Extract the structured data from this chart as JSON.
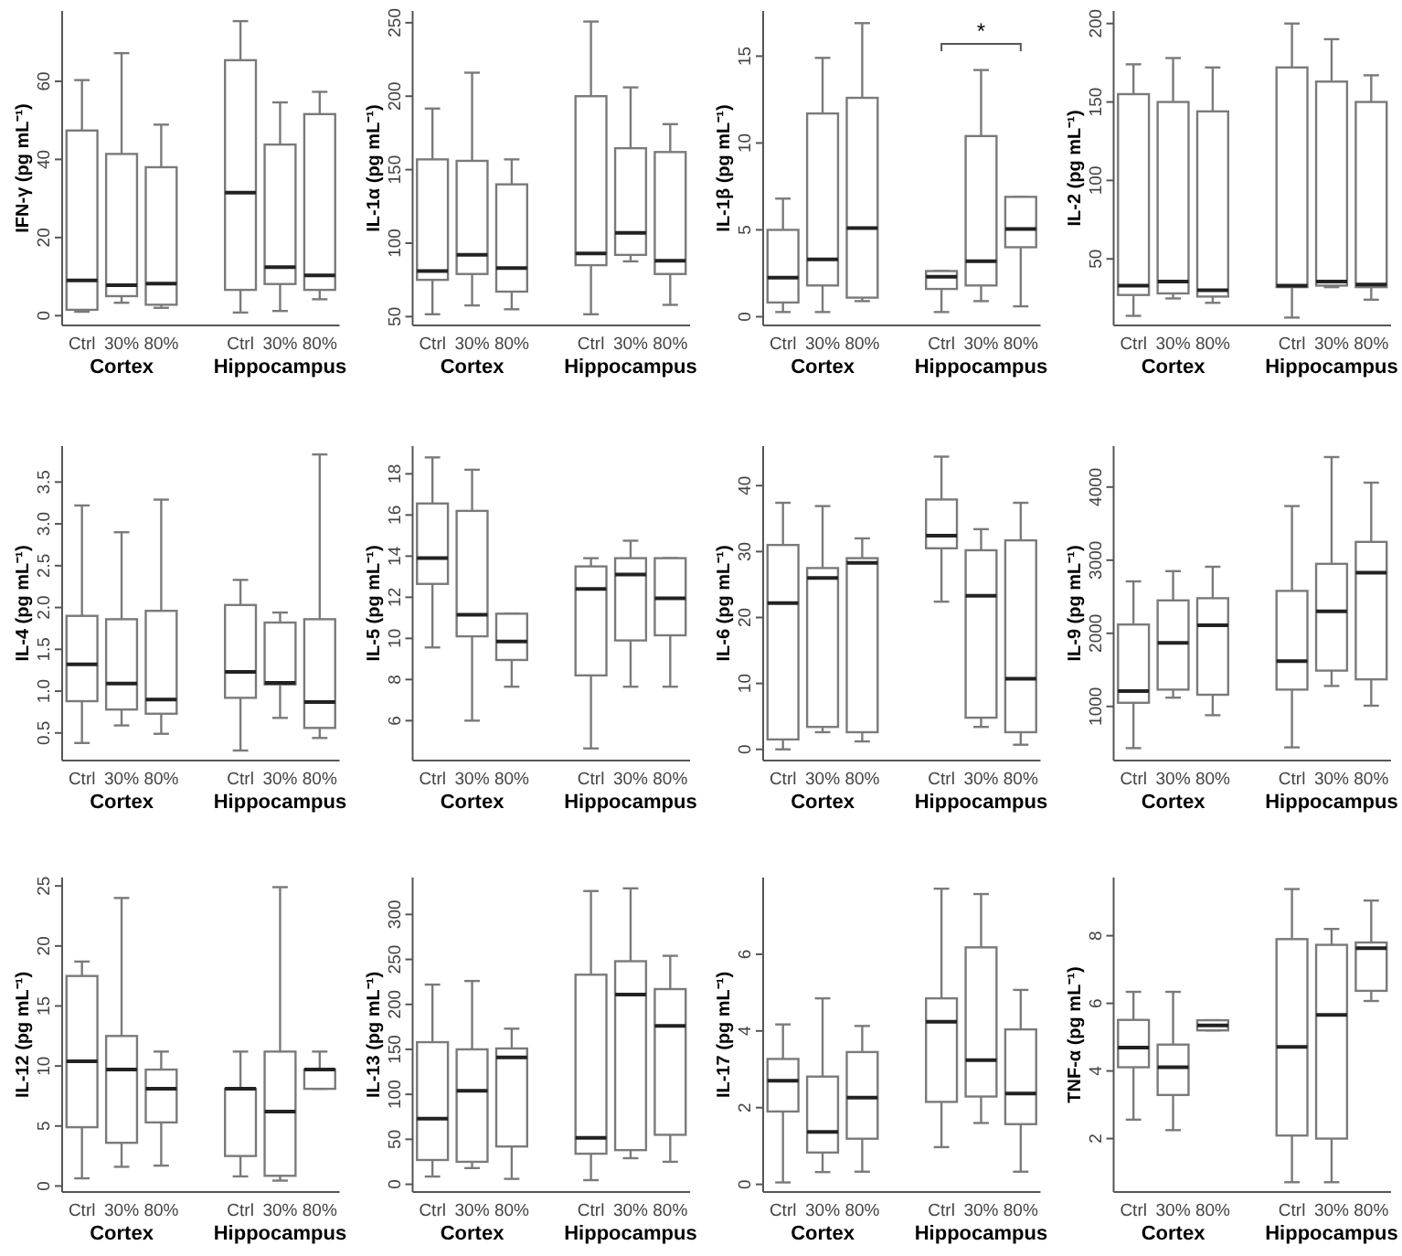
{
  "chart_data": [
    {
      "type": "box",
      "ylabel": "IFN-γ (pg mL⁻¹)",
      "categories": [
        "Ctrl",
        "30%",
        "80%",
        null,
        "Ctrl",
        "30%",
        "80%"
      ],
      "ylim": [
        -2.5,
        78
      ],
      "yticks": [
        0,
        20,
        40,
        60
      ],
      "annotations": [
        "Cortex",
        "Hippocampus"
      ],
      "boxes": [
        {
          "low": 1,
          "q1": 1.5,
          "median": 9,
          "q3": 47.4,
          "high": 60.3
        },
        {
          "low": 3.3,
          "q1": 5,
          "median": 7.8,
          "q3": 41.4,
          "high": 67.2
        },
        {
          "low": 2,
          "q1": 2.8,
          "median": 8.2,
          "q3": 38,
          "high": 48.9
        },
        null,
        {
          "low": 0.8,
          "q1": 6.6,
          "median": 31.5,
          "q3": 65.4,
          "high": 75.4
        },
        {
          "low": 1.2,
          "q1": 8.1,
          "median": 12.4,
          "q3": 43.8,
          "high": 54.6
        },
        {
          "low": 4.2,
          "q1": 6.6,
          "median": 10.3,
          "q3": 51.6,
          "high": 57.3
        }
      ]
    },
    {
      "type": "box",
      "ylabel": "IL-1α (pg mL⁻¹)",
      "categories": [
        "Ctrl",
        "30%",
        "80%",
        null,
        "Ctrl",
        "30%",
        "80%"
      ],
      "ylim": [
        44,
        258
      ],
      "yticks": [
        50,
        100,
        150,
        200,
        250
      ],
      "annotations": [
        "Cortex",
        "Hippocampus"
      ],
      "boxes": [
        {
          "low": 51.6,
          "q1": 75,
          "median": 81,
          "q3": 157,
          "high": 191.6
        },
        {
          "low": 57.6,
          "q1": 79,
          "median": 92,
          "q3": 156,
          "high": 216
        },
        {
          "low": 55,
          "q1": 67,
          "median": 83,
          "q3": 140,
          "high": 157
        },
        null,
        {
          "low": 51.6,
          "q1": 85,
          "median": 93,
          "q3": 200,
          "high": 250.8
        },
        {
          "low": 87.6,
          "q1": 92,
          "median": 107,
          "q3": 164.6,
          "high": 206
        },
        {
          "low": 58,
          "q1": 79,
          "median": 88,
          "q3": 162,
          "high": 181
        }
      ]
    },
    {
      "type": "box",
      "ylabel": "IL-1β (pg mL⁻¹)",
      "categories": [
        "Ctrl",
        "30%",
        "80%",
        null,
        "Ctrl",
        "30%",
        "80%"
      ],
      "ylim": [
        -0.5,
        17.6
      ],
      "yticks": [
        0,
        5,
        10,
        15
      ],
      "annotations": [
        "Cortex",
        "Hippocampus",
        "*"
      ],
      "boxes": [
        {
          "low": 0.27,
          "q1": 0.82,
          "median": 2.25,
          "q3": 5,
          "high": 6.8
        },
        {
          "low": 0.27,
          "q1": 1.8,
          "median": 3.3,
          "q3": 11.7,
          "high": 14.9
        },
        {
          "low": 0.9,
          "q1": 1.1,
          "median": 5.1,
          "q3": 12.6,
          "high": 16.9
        },
        null,
        {
          "low": 0.27,
          "q1": 1.6,
          "median": 2.3,
          "q3": 2.63,
          "high": 2.63
        },
        {
          "low": 0.9,
          "q1": 1.8,
          "median": 3.2,
          "q3": 10.4,
          "high": 14.2
        },
        {
          "low": 0.6,
          "q1": 4,
          "median": 5.05,
          "q3": 6.9,
          "high": 6.9
        }
      ]
    },
    {
      "type": "box",
      "ylabel": "IL-2 (pg mL⁻¹)",
      "categories": [
        "Ctrl",
        "30%",
        "80%",
        null,
        "Ctrl",
        "30%",
        "80%"
      ],
      "ylim": [
        7.6,
        208
      ],
      "yticks": [
        50,
        100,
        150,
        200
      ],
      "annotations": [
        "Cortex",
        "Hippocampus"
      ],
      "boxes": [
        {
          "low": 13.7,
          "q1": 27,
          "median": 33,
          "q3": 155,
          "high": 174
        },
        {
          "low": 24.8,
          "q1": 28,
          "median": 35.6,
          "q3": 150,
          "high": 178
        },
        {
          "low": 22,
          "q1": 26,
          "median": 30,
          "q3": 144,
          "high": 172
        },
        null,
        {
          "low": 12.6,
          "q1": 32,
          "median": 33,
          "q3": 172,
          "high": 200
        },
        {
          "low": 32,
          "q1": 33,
          "median": 35.6,
          "q3": 163,
          "high": 190
        },
        {
          "low": 24,
          "q1": 32,
          "median": 33.6,
          "q3": 150,
          "high": 167
        }
      ]
    },
    {
      "type": "box",
      "ylabel": "IL-4 (pg mL⁻¹)",
      "categories": [
        "Ctrl",
        "30%",
        "80%",
        null,
        "Ctrl",
        "30%",
        "80%"
      ],
      "ylim": [
        0.17,
        3.93
      ],
      "yticks": [
        {
          "value": 0.5,
          "label": "0.5"
        },
        {
          "value": 1,
          "label": "1.0"
        },
        {
          "value": 1.5,
          "label": "1.5"
        },
        {
          "value": 2,
          "label": "2.0"
        },
        {
          "value": 2.5,
          "label": "2.5"
        },
        {
          "value": 3,
          "label": "3.0"
        },
        {
          "value": 3.5,
          "label": "3.5"
        }
      ],
      "annotations": [
        "Cortex",
        "Hippocampus"
      ],
      "boxes": [
        {
          "low": 0.38,
          "q1": 0.88,
          "median": 1.32,
          "q3": 1.9,
          "high": 3.22
        },
        {
          "low": 0.59,
          "q1": 0.78,
          "median": 1.09,
          "q3": 1.86,
          "high": 2.9
        },
        {
          "low": 0.49,
          "q1": 0.73,
          "median": 0.9,
          "q3": 1.96,
          "high": 3.29
        },
        null,
        {
          "low": 0.29,
          "q1": 0.92,
          "median": 1.23,
          "q3": 2.03,
          "high": 2.33
        },
        {
          "low": 0.68,
          "q1": 1.08,
          "median": 1.1,
          "q3": 1.82,
          "high": 1.94
        },
        {
          "low": 0.44,
          "q1": 0.56,
          "median": 0.87,
          "q3": 1.86,
          "high": 3.83
        }
      ]
    },
    {
      "type": "box",
      "ylabel": "IL-5 (pg mL⁻¹)",
      "categories": [
        "Ctrl",
        "30%",
        "80%",
        null,
        "Ctrl",
        "30%",
        "80%"
      ],
      "ylim": [
        4.06,
        19.35
      ],
      "yticks": [
        6,
        8,
        10,
        12,
        14,
        16,
        18
      ],
      "annotations": [
        "Cortex",
        "Hippocampus"
      ],
      "boxes": [
        {
          "low": 9.56,
          "q1": 12.65,
          "median": 13.9,
          "q3": 16.56,
          "high": 18.8
        },
        {
          "low": 6,
          "q1": 10.1,
          "median": 11.15,
          "q3": 16.2,
          "high": 18.2
        },
        {
          "low": 7.65,
          "q1": 8.95,
          "median": 9.85,
          "q3": 11.2,
          "high": 11.2
        },
        null,
        {
          "low": 4.65,
          "q1": 8.2,
          "median": 12.4,
          "q3": 13.5,
          "high": 13.9
        },
        {
          "low": 7.65,
          "q1": 9.9,
          "median": 13.1,
          "q3": 13.9,
          "high": 14.75
        },
        {
          "low": 7.65,
          "q1": 10.15,
          "median": 11.95,
          "q3": 13.9,
          "high": 13.9
        }
      ]
    },
    {
      "type": "box",
      "ylabel": "IL-6 (pg mL⁻¹)",
      "categories": [
        "Ctrl",
        "30%",
        "80%",
        null,
        "Ctrl",
        "30%",
        "80%"
      ],
      "ylim": [
        -1.7,
        46
      ],
      "yticks": [
        0,
        10,
        20,
        30,
        40
      ],
      "annotations": [
        "Cortex",
        "Hippocampus"
      ],
      "boxes": [
        {
          "low": 0,
          "q1": 1.5,
          "median": 22.2,
          "q3": 31,
          "high": 37.4
        },
        {
          "low": 2.6,
          "q1": 3.4,
          "median": 26,
          "q3": 27.5,
          "high": 36.9
        },
        {
          "low": 1.2,
          "q1": 2.6,
          "median": 28.3,
          "q3": 29,
          "high": 32
        },
        null,
        {
          "low": 22.4,
          "q1": 30.5,
          "median": 32.4,
          "q3": 37.9,
          "high": 44.4
        },
        {
          "low": 3.4,
          "q1": 4.8,
          "median": 23.3,
          "q3": 30.2,
          "high": 33.4
        },
        {
          "low": 0.7,
          "q1": 2.6,
          "median": 10.7,
          "q3": 31.7,
          "high": 37.4
        }
      ]
    },
    {
      "type": "box",
      "ylabel": "IL-9 (pg mL⁻¹)",
      "categories": [
        "Ctrl",
        "30%",
        "80%",
        null,
        "Ctrl",
        "30%",
        "80%"
      ],
      "ylim": [
        260,
        4560
      ],
      "yticks": [
        1000,
        2000,
        3000,
        4000
      ],
      "annotations": [
        "Cortex",
        "Hippocampus"
      ],
      "boxes": [
        {
          "low": 430,
          "q1": 1050,
          "median": 1210,
          "q3": 2120,
          "high": 2710
        },
        {
          "low": 1120,
          "q1": 1230,
          "median": 1870,
          "q3": 2450,
          "high": 2850
        },
        {
          "low": 880,
          "q1": 1160,
          "median": 2110,
          "q3": 2480,
          "high": 2910
        },
        null,
        {
          "low": 440,
          "q1": 1230,
          "median": 1620,
          "q3": 2580,
          "high": 3740
        },
        {
          "low": 1280,
          "q1": 1490,
          "median": 2300,
          "q3": 2950,
          "high": 4410
        },
        {
          "low": 1010,
          "q1": 1370,
          "median": 2830,
          "q3": 3250,
          "high": 4060
        }
      ]
    },
    {
      "type": "box",
      "ylabel": "IL-12 (pg mL⁻¹)",
      "categories": [
        "Ctrl",
        "30%",
        "80%",
        null,
        "Ctrl",
        "30%",
        "80%"
      ],
      "ylim": [
        -0.5,
        25.7
      ],
      "yticks": [
        0,
        5,
        10,
        15,
        20,
        25
      ],
      "annotations": [
        "Cortex",
        "Hippocampus"
      ],
      "boxes": [
        {
          "low": 0.64,
          "q1": 4.9,
          "median": 10.4,
          "q3": 17.5,
          "high": 18.7
        },
        {
          "low": 1.6,
          "q1": 3.6,
          "median": 9.7,
          "q3": 12.5,
          "high": 24
        },
        {
          "low": 1.7,
          "q1": 5.3,
          "median": 8.1,
          "q3": 9.7,
          "high": 11.2
        },
        null,
        {
          "low": 0.8,
          "q1": 2.5,
          "median": 8.1,
          "q3": 8.1,
          "high": 11.2
        },
        {
          "low": 0.45,
          "q1": 0.85,
          "median": 6.2,
          "q3": 11.2,
          "high": 24.9
        },
        {
          "low": 8.1,
          "q1": 8.1,
          "median": 9.7,
          "q3": 9.7,
          "high": 11.2
        }
      ]
    },
    {
      "type": "box",
      "ylabel": "IL-13 (pg mL⁻¹)",
      "categories": [
        "Ctrl",
        "30%",
        "80%",
        null,
        "Ctrl",
        "30%",
        "80%"
      ],
      "ylim": [
        -8.6,
        341
      ],
      "yticks": [
        0,
        50,
        100,
        150,
        200,
        250,
        300
      ],
      "annotations": [
        "Cortex",
        "Hippocampus"
      ],
      "boxes": [
        {
          "low": 8.6,
          "q1": 27,
          "median": 73,
          "q3": 158,
          "high": 222
        },
        {
          "low": 18,
          "q1": 25,
          "median": 104,
          "q3": 150,
          "high": 226
        },
        {
          "low": 6,
          "q1": 42,
          "median": 141,
          "q3": 151,
          "high": 173
        },
        null,
        {
          "low": 4.6,
          "q1": 34,
          "median": 51.5,
          "q3": 233,
          "high": 326
        },
        {
          "low": 29,
          "q1": 38,
          "median": 211,
          "q3": 248,
          "high": 329
        },
        {
          "low": 25,
          "q1": 55,
          "median": 176,
          "q3": 217,
          "high": 254
        }
      ]
    },
    {
      "type": "box",
      "ylabel": "IL-17 (pg mL⁻¹)",
      "categories": [
        "Ctrl",
        "30%",
        "80%",
        null,
        "Ctrl",
        "30%",
        "80%"
      ],
      "ylim": [
        -0.2,
        8
      ],
      "yticks": [
        0,
        2,
        4,
        6
      ],
      "annotations": [
        "Cortex",
        "Hippocampus"
      ],
      "boxes": [
        {
          "low": 0.05,
          "q1": 1.9,
          "median": 2.7,
          "q3": 3.27,
          "high": 4.17
        },
        {
          "low": 0.32,
          "q1": 0.83,
          "median": 1.37,
          "q3": 2.81,
          "high": 4.85
        },
        {
          "low": 0.33,
          "q1": 1.19,
          "median": 2.26,
          "q3": 3.45,
          "high": 4.13
        },
        null,
        {
          "low": 0.97,
          "q1": 2.15,
          "median": 4.24,
          "q3": 4.85,
          "high": 7.71
        },
        {
          "low": 1.6,
          "q1": 2.29,
          "median": 3.24,
          "q3": 6.18,
          "high": 7.57
        },
        {
          "low": 0.33,
          "q1": 1.57,
          "median": 2.37,
          "q3": 4.04,
          "high": 5.07
        }
      ]
    },
    {
      "type": "box",
      "ylabel": "TNF-α (pg mL⁻¹)",
      "categories": [
        "Ctrl",
        "30%",
        "80%",
        null,
        "Ctrl",
        "30%",
        "80%"
      ],
      "ylim": [
        0.42,
        9.72
      ],
      "yticks": [
        2,
        4,
        6,
        8
      ],
      "annotations": [
        "Cortex",
        "Hippocampus"
      ],
      "boxes": [
        {
          "low": 2.56,
          "q1": 4.11,
          "median": 4.69,
          "q3": 5.51,
          "high": 6.34
        },
        {
          "low": 2.25,
          "q1": 3.29,
          "median": 4.11,
          "q3": 4.78,
          "high": 6.34
        },
        {
          "low": 5.2,
          "q1": 5.2,
          "median": 5.35,
          "q3": 5.5,
          "high": 5.5
        },
        null,
        {
          "low": 0.71,
          "q1": 2.09,
          "median": 4.71,
          "q3": 7.9,
          "high": 9.38
        },
        {
          "low": 0.71,
          "q1": 2,
          "median": 5.66,
          "q3": 7.73,
          "high": 8.2
        },
        {
          "low": 6.07,
          "q1": 6.37,
          "median": 7.63,
          "q3": 7.8,
          "high": 9.04
        }
      ]
    }
  ]
}
